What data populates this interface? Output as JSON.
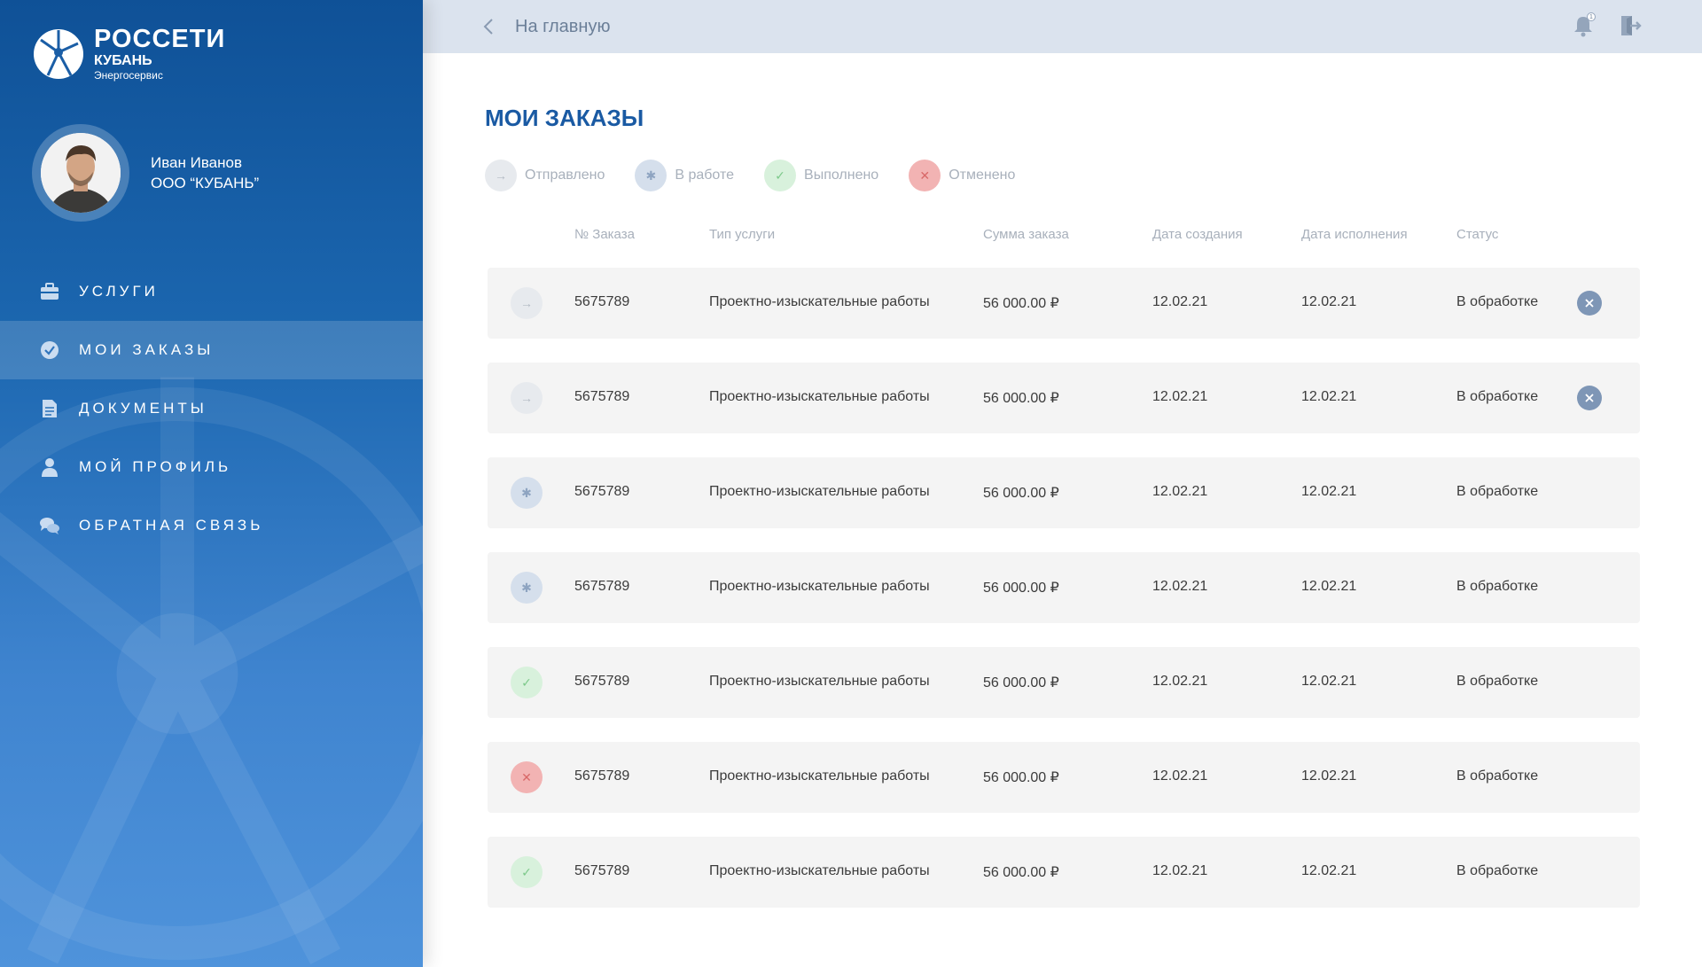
{
  "brand": {
    "title": "РОССЕТИ",
    "sub1": "КУБАНЬ",
    "sub2": "Энергосервис"
  },
  "user": {
    "name": "Иван Иванов",
    "org": "ООО “КУБАНЬ”"
  },
  "nav": [
    {
      "label": "УСЛУГИ",
      "icon": "briefcase-icon",
      "active": false
    },
    {
      "label": "МОИ ЗАКАЗЫ",
      "icon": "check-circle-icon",
      "active": true
    },
    {
      "label": "ДОКУМЕНТЫ",
      "icon": "document-icon",
      "active": false
    },
    {
      "label": "МОЙ ПРОФИЛЬ",
      "icon": "user-icon",
      "active": false
    },
    {
      "label": "ОБРАТНАЯ СВЯЗЬ",
      "icon": "chat-icon",
      "active": false
    }
  ],
  "topbar": {
    "back_label": "На главную",
    "notifications_count": "1"
  },
  "page": {
    "title": "МОИ ЗАКАЗЫ"
  },
  "legend": [
    {
      "key": "sent",
      "label": "Отправлено",
      "icon": "arrow-right-icon"
    },
    {
      "key": "work",
      "label": "В работе",
      "icon": "gear-icon"
    },
    {
      "key": "done",
      "label": "Выполнено",
      "icon": "check-icon"
    },
    {
      "key": "cancel",
      "label": "Отменено",
      "icon": "close-icon"
    }
  ],
  "table": {
    "columns": [
      "№ Заказа",
      "Тип услуги",
      "Сумма заказа",
      "Дата создания",
      "Дата исполнения",
      "Статус"
    ],
    "rows": [
      {
        "state": "sent",
        "number": "5675789",
        "type": "Проектно-изыскательные работы",
        "sum": "56 000.00 ₽",
        "created": "12.02.21",
        "done": "12.02.21",
        "status": "В обработке",
        "cancellable": true
      },
      {
        "state": "sent",
        "number": "5675789",
        "type": "Проектно-изыскательные работы",
        "sum": "56 000.00 ₽",
        "created": "12.02.21",
        "done": "12.02.21",
        "status": "В обработке",
        "cancellable": true
      },
      {
        "state": "work",
        "number": "5675789",
        "type": "Проектно-изыскательные работы",
        "sum": "56 000.00 ₽",
        "created": "12.02.21",
        "done": "12.02.21",
        "status": "В обработке",
        "cancellable": false
      },
      {
        "state": "work",
        "number": "5675789",
        "type": "Проектно-изыскательные работы",
        "sum": "56 000.00 ₽",
        "created": "12.02.21",
        "done": "12.02.21",
        "status": "В обработке",
        "cancellable": false
      },
      {
        "state": "done",
        "number": "5675789",
        "type": "Проектно-изыскательные работы",
        "sum": "56 000.00 ₽",
        "created": "12.02.21",
        "done": "12.02.21",
        "status": "В обработке",
        "cancellable": false
      },
      {
        "state": "cancel",
        "number": "5675789",
        "type": "Проектно-изыскательные работы",
        "sum": "56 000.00 ₽",
        "created": "12.02.21",
        "done": "12.02.21",
        "status": "В обработке",
        "cancellable": false
      },
      {
        "state": "done",
        "number": "5675789",
        "type": "Проектно-изыскательные работы",
        "sum": "56 000.00 ₽",
        "created": "12.02.21",
        "done": "12.02.21",
        "status": "В обработке",
        "cancellable": false
      }
    ]
  },
  "colors": {
    "primary": "#1a5aa3",
    "topbar": "#dbe3ee",
    "row_bg": "#f4f4f4",
    "cancel_button": "#7e96b6"
  }
}
